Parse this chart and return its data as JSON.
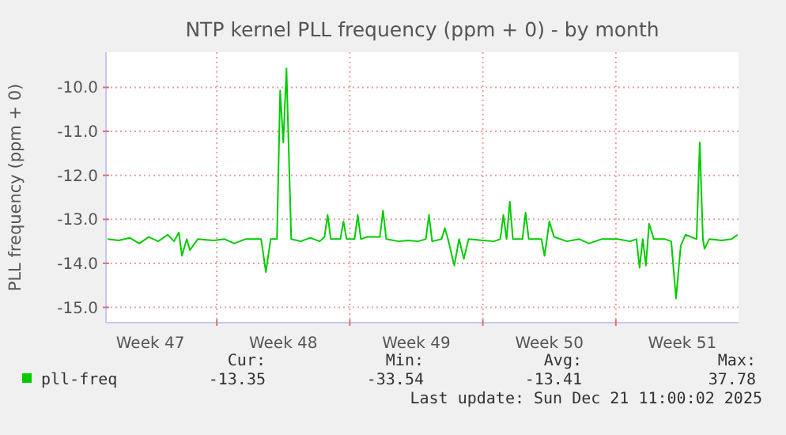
{
  "chart_data": {
    "type": "line",
    "title": "NTP kernel PLL frequency (ppm + 0) - by month",
    "ylabel": "PLL frequency (ppm + 0)",
    "xlim": [
      "2025-11-18T04:00",
      "2025-12-21T11:00"
    ],
    "xticks": [
      {
        "value": "2025-11-20T12:00",
        "label": "Week 47"
      },
      {
        "value": "2025-11-24T00:00",
        "label": null
      },
      {
        "value": "2025-11-27T12:00",
        "label": "Week 48"
      },
      {
        "value": "2025-12-01T00:00",
        "label": null
      },
      {
        "value": "2025-12-04T12:00",
        "label": "Week 49"
      },
      {
        "value": "2025-12-08T00:00",
        "label": null
      },
      {
        "value": "2025-12-11T12:00",
        "label": "Week 50"
      },
      {
        "value": "2025-12-15T00:00",
        "label": null
      },
      {
        "value": "2025-12-18T12:00",
        "label": "Week 51"
      }
    ],
    "ylim": [
      -15.35,
      -9.2
    ],
    "yticks": [
      {
        "value": -15,
        "label": "-15.0"
      },
      {
        "value": -14,
        "label": "-14.0"
      },
      {
        "value": -13,
        "label": "-13.0"
      },
      {
        "value": -12,
        "label": "-12.0"
      },
      {
        "value": -11,
        "label": "-11.0"
      },
      {
        "value": -10,
        "label": "-10.0"
      }
    ],
    "grid": true,
    "legend": "bottom",
    "x": [
      "2025-11-18T06:00",
      "2025-11-18T20:00",
      "2025-11-19T10:00",
      "2025-11-19T22:00",
      "2025-11-20T10:00",
      "2025-11-20T22:00",
      "2025-11-21T10:00",
      "2025-11-21T18:00",
      "2025-11-22T00:00",
      "2025-11-22T04:00",
      "2025-11-22T10:00",
      "2025-11-22T14:00",
      "2025-11-23T00:00",
      "2025-11-23T20:00",
      "2025-11-24T10:00",
      "2025-11-24T22:00",
      "2025-11-25T12:00",
      "2025-11-26T08:00",
      "2025-11-26T14:00",
      "2025-11-26T20:00",
      "2025-11-27T04:00",
      "2025-11-27T08:00",
      "2025-11-27T12:00",
      "2025-11-27T16:00",
      "2025-11-27T22:00",
      "2025-11-28T10:00",
      "2025-11-28T22:00",
      "2025-11-29T10:00",
      "2025-11-29T16:00",
      "2025-11-29T20:00",
      "2025-11-30T00:00",
      "2025-11-30T12:00",
      "2025-11-30T16:00",
      "2025-11-30T20:00",
      "2025-12-01T06:00",
      "2025-12-01T10:00",
      "2025-12-01T14:00",
      "2025-12-01T22:00",
      "2025-12-02T14:00",
      "2025-12-02T18:00",
      "2025-12-02T22:00",
      "2025-12-03T14:00",
      "2025-12-04T02:00",
      "2025-12-04T14:00",
      "2025-12-05T00:00",
      "2025-12-05T04:00",
      "2025-12-05T08:00",
      "2025-12-05T20:00",
      "2025-12-06T00:00",
      "2025-12-06T04:00",
      "2025-12-06T12:00",
      "2025-12-06T18:00",
      "2025-12-07T00:00",
      "2025-12-07T06:00",
      "2025-12-08T00:00",
      "2025-12-08T14:00",
      "2025-12-08T22:00",
      "2025-12-09T02:00",
      "2025-12-09T06:00",
      "2025-12-09T10:00",
      "2025-12-09T14:00",
      "2025-12-10T02:00",
      "2025-12-10T06:00",
      "2025-12-10T10:00",
      "2025-12-11T02:00",
      "2025-12-11T06:00",
      "2025-12-11T12:00",
      "2025-12-11T18:00",
      "2025-12-12T10:00",
      "2025-12-13T02:00",
      "2025-12-13T14:00",
      "2025-12-14T06:00",
      "2025-12-15T02:00",
      "2025-12-15T18:00",
      "2025-12-16T02:00",
      "2025-12-16T06:00",
      "2025-12-16T10:00",
      "2025-12-16T14:00",
      "2025-12-16T18:00",
      "2025-12-17T00:00",
      "2025-12-17T14:00",
      "2025-12-17T22:00",
      "2025-12-18T04:00",
      "2025-12-18T10:00",
      "2025-12-18T16:00",
      "2025-12-19T06:00",
      "2025-12-19T10:00",
      "2025-12-19T14:00",
      "2025-12-19T16:00",
      "2025-12-19T22:00",
      "2025-12-20T14:00",
      "2025-12-21T02:00",
      "2025-12-21T10:00"
    ],
    "series": [
      {
        "name": "pll-freq",
        "color": "#00cc00",
        "values": [
          -13.45,
          -13.48,
          -13.42,
          -13.55,
          -13.4,
          -13.5,
          -13.35,
          -13.5,
          -13.3,
          -13.83,
          -13.45,
          -13.7,
          -13.45,
          -13.48,
          -13.45,
          -13.55,
          -13.45,
          -13.45,
          -14.2,
          -13.45,
          -13.45,
          -10.07,
          -11.25,
          -9.57,
          -13.45,
          -13.5,
          -13.42,
          -13.5,
          -13.4,
          -12.9,
          -13.45,
          -13.45,
          -13.05,
          -13.45,
          -13.45,
          -12.9,
          -13.45,
          -13.4,
          -13.4,
          -12.8,
          -13.45,
          -13.5,
          -13.48,
          -13.5,
          -13.45,
          -12.9,
          -13.5,
          -13.45,
          -13.2,
          -13.45,
          -14.05,
          -13.45,
          -13.9,
          -13.45,
          -13.48,
          -13.5,
          -13.45,
          -12.9,
          -13.45,
          -12.6,
          -13.45,
          -13.45,
          -12.85,
          -13.45,
          -13.45,
          -13.83,
          -13.05,
          -13.4,
          -13.5,
          -13.45,
          -13.55,
          -13.45,
          -13.45,
          -13.5,
          -13.45,
          -14.1,
          -13.45,
          -14.05,
          -13.1,
          -13.45,
          -13.45,
          -13.5,
          -14.8,
          -13.6,
          -13.35,
          -13.45,
          -11.25,
          -13.45,
          -13.67,
          -13.45,
          -13.48,
          -13.45,
          -13.35
        ]
      }
    ],
    "annotations": [
      "Cur:",
      "Min:",
      "Avg:",
      "Max:",
      "-13.35",
      "-33.54",
      "-13.41",
      "37.78",
      "Last update: Sun Dec 21 11:00:02 2025"
    ]
  }
}
